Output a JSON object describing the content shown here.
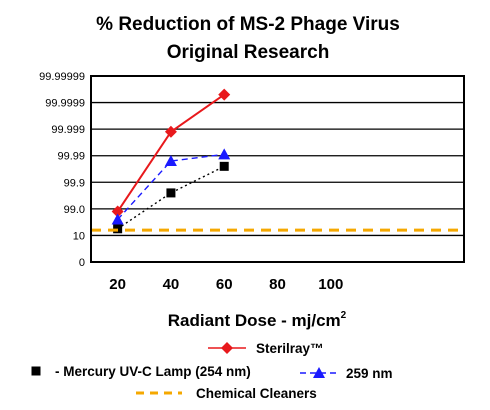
{
  "chart_data": {
    "type": "line",
    "title_line1": "% Reduction of MS-2 Phage Virus",
    "title_line2": "Original Research",
    "xlabel_main": "Radiant Dose - mj/cm",
    "xlabel_sup": "2",
    "ylabel": "",
    "x_ticks": [
      20,
      40,
      60,
      80,
      100
    ],
    "xlim": [
      10,
      150
    ],
    "y_ticks": [
      "0",
      "10",
      "99.0",
      "99.9",
      "99.99",
      "99.999",
      "99.9999",
      "99.99999"
    ],
    "y_scale": "categorical-log-reduction",
    "grid": "horizontal",
    "series": [
      {
        "name": "Sterilray™",
        "color": "#e8191c",
        "marker": "diamond",
        "line_style": "solid",
        "points": [
          {
            "x": 20,
            "y": 1.9
          },
          {
            "x": 40,
            "y": 4.9
          },
          {
            "x": 60,
            "y": 6.3
          }
        ]
      },
      {
        "name": "- Mercury UV-C Lamp (254 nm)",
        "color": "#000000",
        "marker": "square",
        "line_style": "dotted",
        "points": [
          {
            "x": 20,
            "y": 1.25
          },
          {
            "x": 40,
            "y": 2.6
          },
          {
            "x": 60,
            "y": 3.6
          }
        ]
      },
      {
        "name": "259 nm",
        "color": "#1a1aff",
        "marker": "triangle",
        "line_style": "dashed",
        "points": [
          {
            "x": 20,
            "y": 1.6
          },
          {
            "x": 40,
            "y": 3.8
          },
          {
            "x": 60,
            "y": 4.05
          }
        ]
      },
      {
        "name": "Chemical Cleaners",
        "color": "#f5a800",
        "marker": "none",
        "line_style": "dashed",
        "points": [
          {
            "x": 10,
            "y": 1.2
          },
          {
            "x": 150,
            "y": 1.2
          }
        ]
      }
    ]
  }
}
